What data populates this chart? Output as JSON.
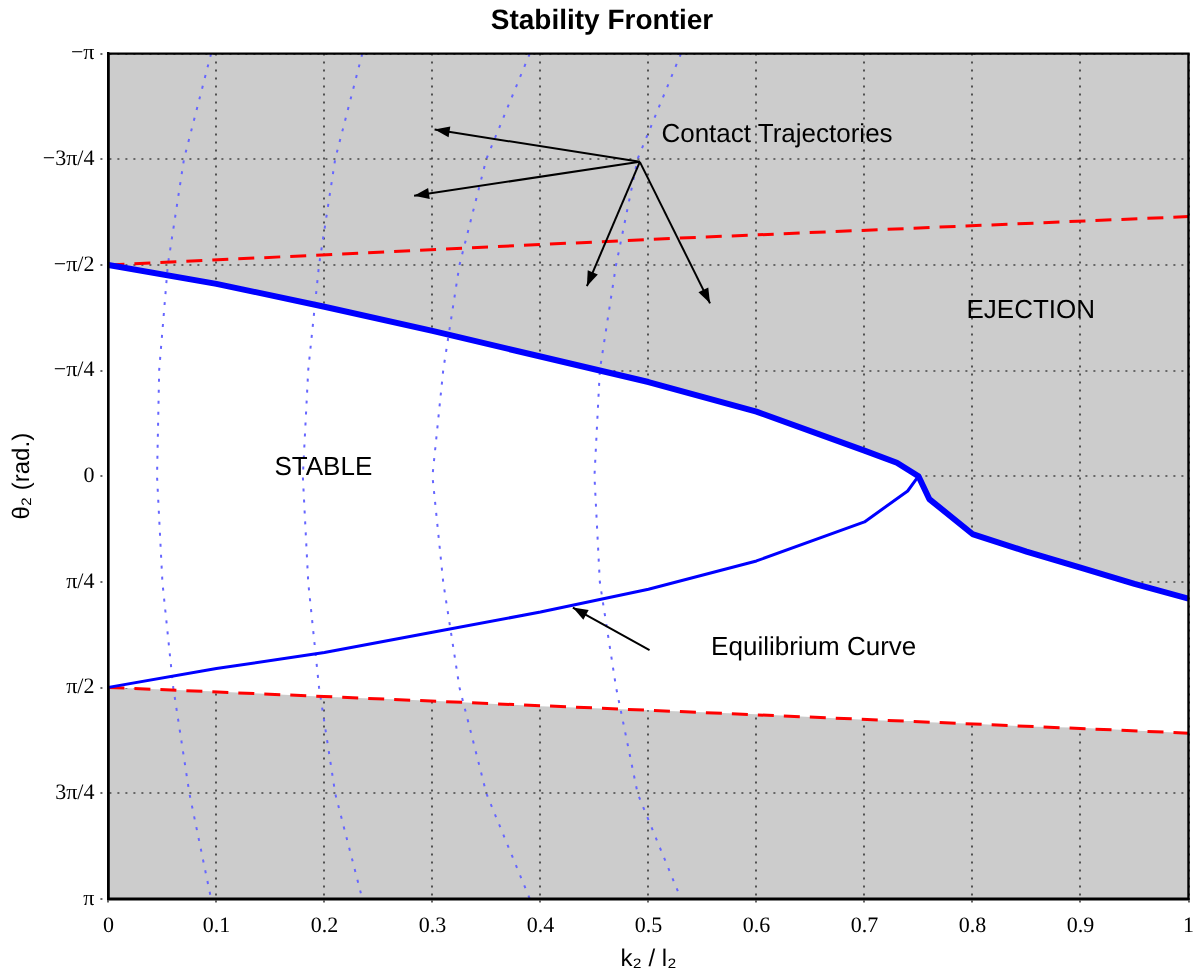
{
  "chart_data": {
    "type": "line",
    "title": "Stability Frontier",
    "xlabel": "k₂ / l₂",
    "ylabel": "θ₂ (rad.)",
    "xlim": [
      0,
      1
    ],
    "xticks": [
      0,
      0.1,
      0.2,
      0.3,
      0.4,
      0.5,
      0.6,
      0.7,
      0.8,
      0.9,
      1
    ],
    "ylim": [
      3.1416,
      -3.1416
    ],
    "yticks": [
      {
        "value": -3.1416,
        "label": "−π"
      },
      {
        "value": -2.3562,
        "label": "−3π/4"
      },
      {
        "value": -1.5708,
        "label": "−π/2"
      },
      {
        "value": -0.7854,
        "label": "−π/4"
      },
      {
        "value": 0,
        "label": "0"
      },
      {
        "value": 0.7854,
        "label": "π/4"
      },
      {
        "value": 1.5708,
        "label": "π/2"
      },
      {
        "value": 2.3562,
        "label": "3π/4"
      },
      {
        "value": 3.1416,
        "label": "π"
      }
    ],
    "grid": true,
    "legend": false,
    "marker": "none",
    "bands": [
      {
        "axis": "y",
        "from": -3.1416,
        "to": 3.1416,
        "color": "#cccccc"
      }
    ],
    "series": [
      {
        "color": "#0000ff",
        "line_style": "solid",
        "x": [
          0,
          0.1,
          0.2,
          0.3,
          0.4,
          0.5,
          0.6,
          0.7,
          0.73,
          0.75,
          0.76,
          0.8,
          0.85,
          0.9,
          0.95,
          1
        ],
        "values": [
          -1.57,
          -1.43,
          -1.26,
          -1.08,
          -0.89,
          -0.7,
          -0.48,
          -0.19,
          -0.1,
          0,
          0.17,
          0.43,
          0.56,
          0.68,
          0.8,
          0.91
        ],
        "lower": [
          1.57,
          1.6,
          1.64,
          1.67,
          1.71,
          1.74,
          1.77,
          1.81,
          1.82,
          1.82,
          1.83,
          1.84,
          1.86,
          1.87,
          1.89,
          1.91
        ],
        "upper": [
          -1.57,
          -1.43,
          -1.26,
          -1.08,
          -0.89,
          -0.7,
          -0.48,
          -0.19,
          -0.1,
          0,
          0.17,
          0.43,
          0.56,
          0.68,
          0.8,
          0.91
        ]
      },
      {
        "color": "#0000ff",
        "line_style": "solid",
        "x": [
          0,
          0.1,
          0.2,
          0.3,
          0.4,
          0.5,
          0.6,
          0.7,
          0.74,
          0.75
        ],
        "values": [
          1.57,
          1.43,
          1.31,
          1.16,
          1.01,
          0.84,
          0.63,
          0.34,
          0.11,
          0
        ]
      },
      {
        "color": "#ff0000",
        "line_style": "dashed",
        "x": [
          0,
          0.5,
          1
        ],
        "values": [
          -1.57,
          -1.76,
          -1.93
        ]
      },
      {
        "color": "#ff0000",
        "line_style": "dashed",
        "x": [
          0,
          0.5,
          1
        ],
        "values": [
          1.57,
          1.74,
          1.91
        ]
      },
      {
        "color": "#6666ff",
        "line_style": "dotted",
        "x": [
          0.095,
          0.07,
          0.055,
          0.047,
          0.045,
          0.05,
          0.06,
          0.075,
          0.095
        ],
        "values": [
          -3.14,
          -2.36,
          -1.57,
          -0.79,
          0,
          0.79,
          1.57,
          2.36,
          3.14
        ]
      },
      {
        "color": "#6666ff",
        "line_style": "dotted",
        "x": [
          0.235,
          0.21,
          0.195,
          0.185,
          0.18,
          0.185,
          0.195,
          0.21,
          0.235
        ],
        "values": [
          -3.14,
          -2.36,
          -1.57,
          -0.79,
          0,
          0.79,
          1.57,
          2.36,
          3.14
        ]
      },
      {
        "color": "#6666ff",
        "line_style": "dotted",
        "x": [
          0.39,
          0.35,
          0.325,
          0.31,
          0.3,
          0.31,
          0.325,
          0.35,
          0.39
        ],
        "values": [
          -3.14,
          -2.36,
          -1.57,
          -0.79,
          0,
          0.79,
          1.57,
          2.36,
          3.14
        ]
      },
      {
        "color": "#6666ff",
        "line_style": "dotted",
        "x": [
          0.53,
          0.49,
          0.47,
          0.455,
          0.45,
          0.455,
          0.47,
          0.49,
          0.53
        ],
        "values": [
          -3.14,
          -2.36,
          -1.57,
          -0.79,
          0,
          0.79,
          1.57,
          2.36,
          3.14
        ]
      }
    ],
    "annotations": [
      "Contact Trajectories",
      "EJECTION",
      "STABLE",
      "Equilibrium Curve"
    ]
  }
}
